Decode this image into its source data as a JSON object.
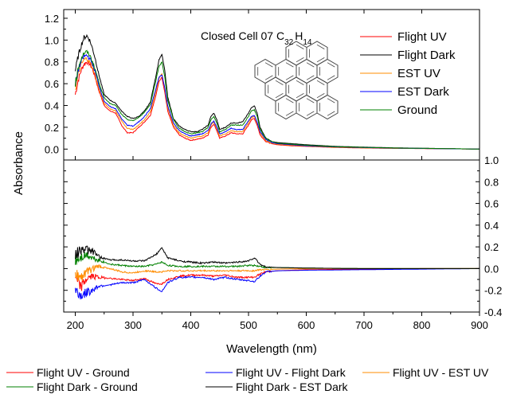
{
  "chart_data": [
    {
      "type": "line",
      "panel": "top",
      "annotation": {
        "text": "Closed Cell 07 C",
        "sub1": "32",
        "mid": "H",
        "sub2": "14"
      },
      "ylabel": "Absorbance",
      "xlim": [
        180,
        900
      ],
      "ylim": [
        -0.1,
        1.28
      ],
      "y_ticks": [
        0.0,
        0.2,
        0.4,
        0.6,
        0.8,
        1.0,
        1.2
      ],
      "y_tick_labels": [
        "0.0",
        "0.2",
        "0.4",
        "0.6",
        "0.8",
        "1.0",
        "1.2"
      ],
      "legend_position": "top-right",
      "series": [
        {
          "name": "Flight UV",
          "color": "#ff0000",
          "x": [
            200,
            205,
            210,
            215,
            220,
            225,
            230,
            235,
            240,
            250,
            260,
            270,
            280,
            290,
            300,
            310,
            320,
            330,
            340,
            345,
            350,
            355,
            360,
            370,
            380,
            390,
            400,
            410,
            420,
            430,
            435,
            440,
            445,
            450,
            460,
            470,
            480,
            490,
            500,
            505,
            510,
            515,
            520,
            530,
            540,
            550,
            575,
            600,
            650,
            700,
            750,
            800,
            850,
            900
          ],
          "y": [
            0.5,
            0.63,
            0.72,
            0.78,
            0.8,
            0.78,
            0.73,
            0.65,
            0.55,
            0.4,
            0.35,
            0.33,
            0.22,
            0.15,
            0.15,
            0.2,
            0.25,
            0.31,
            0.5,
            0.62,
            0.66,
            0.52,
            0.35,
            0.2,
            0.13,
            0.1,
            0.08,
            0.09,
            0.1,
            0.13,
            0.2,
            0.23,
            0.17,
            0.1,
            0.12,
            0.15,
            0.14,
            0.14,
            0.22,
            0.27,
            0.28,
            0.22,
            0.13,
            0.07,
            0.05,
            0.04,
            0.03,
            0.025,
            0.015,
            0.01,
            0.007,
            0.005,
            0.003,
            0.0
          ]
        },
        {
          "name": "Flight Dark",
          "color": "#000000",
          "x": [
            200,
            205,
            210,
            215,
            220,
            225,
            230,
            235,
            240,
            250,
            260,
            270,
            280,
            290,
            300,
            310,
            320,
            330,
            340,
            345,
            350,
            355,
            360,
            370,
            380,
            390,
            400,
            410,
            420,
            430,
            435,
            440,
            445,
            450,
            460,
            470,
            480,
            490,
            500,
            505,
            510,
            515,
            520,
            530,
            540,
            550,
            575,
            600,
            650,
            700,
            750,
            800,
            850,
            900
          ],
          "y": [
            0.72,
            0.85,
            0.95,
            1.02,
            1.04,
            1.0,
            0.92,
            0.82,
            0.7,
            0.5,
            0.45,
            0.42,
            0.35,
            0.3,
            0.28,
            0.3,
            0.35,
            0.43,
            0.68,
            0.82,
            0.87,
            0.72,
            0.48,
            0.28,
            0.21,
            0.18,
            0.16,
            0.16,
            0.18,
            0.22,
            0.3,
            0.33,
            0.27,
            0.18,
            0.2,
            0.24,
            0.24,
            0.25,
            0.33,
            0.38,
            0.4,
            0.33,
            0.2,
            0.1,
            0.07,
            0.06,
            0.05,
            0.04,
            0.025,
            0.018,
            0.012,
            0.008,
            0.004,
            0.0
          ]
        },
        {
          "name": "EST UV",
          "color": "#ff8c00",
          "x": [
            200,
            205,
            210,
            215,
            220,
            225,
            230,
            235,
            240,
            250,
            260,
            270,
            280,
            290,
            300,
            310,
            320,
            330,
            340,
            345,
            350,
            355,
            360,
            370,
            380,
            390,
            400,
            410,
            420,
            430,
            435,
            440,
            445,
            450,
            460,
            470,
            480,
            490,
            500,
            505,
            510,
            515,
            520,
            530,
            540,
            550,
            575,
            600,
            650,
            700,
            750,
            800,
            850,
            900
          ],
          "y": [
            0.55,
            0.68,
            0.77,
            0.82,
            0.83,
            0.8,
            0.75,
            0.67,
            0.57,
            0.42,
            0.37,
            0.35,
            0.26,
            0.19,
            0.18,
            0.22,
            0.27,
            0.34,
            0.54,
            0.65,
            0.69,
            0.55,
            0.38,
            0.22,
            0.15,
            0.12,
            0.1,
            0.11,
            0.12,
            0.15,
            0.22,
            0.25,
            0.19,
            0.12,
            0.14,
            0.17,
            0.16,
            0.16,
            0.24,
            0.29,
            0.3,
            0.24,
            0.15,
            0.08,
            0.055,
            0.045,
            0.035,
            0.028,
            0.017,
            0.012,
            0.008,
            0.006,
            0.003,
            0.0
          ]
        },
        {
          "name": "EST Dark",
          "color": "#0000ff",
          "x": [
            200,
            205,
            210,
            215,
            220,
            225,
            230,
            235,
            240,
            250,
            260,
            270,
            280,
            290,
            300,
            310,
            320,
            330,
            340,
            345,
            350,
            355,
            360,
            370,
            380,
            390,
            400,
            410,
            420,
            430,
            435,
            440,
            445,
            450,
            460,
            470,
            480,
            490,
            500,
            505,
            510,
            515,
            520,
            530,
            540,
            550,
            575,
            600,
            650,
            700,
            750,
            800,
            850,
            900
          ],
          "y": [
            0.58,
            0.72,
            0.8,
            0.85,
            0.86,
            0.83,
            0.78,
            0.7,
            0.6,
            0.44,
            0.39,
            0.37,
            0.28,
            0.22,
            0.21,
            0.25,
            0.3,
            0.37,
            0.56,
            0.66,
            0.68,
            0.56,
            0.4,
            0.24,
            0.17,
            0.14,
            0.12,
            0.13,
            0.14,
            0.17,
            0.23,
            0.26,
            0.2,
            0.14,
            0.16,
            0.19,
            0.18,
            0.18,
            0.26,
            0.3,
            0.31,
            0.25,
            0.16,
            0.09,
            0.06,
            0.05,
            0.04,
            0.03,
            0.02,
            0.014,
            0.009,
            0.006,
            0.003,
            0.0
          ]
        },
        {
          "name": "Ground",
          "color": "#008000",
          "x": [
            200,
            205,
            210,
            215,
            220,
            225,
            230,
            235,
            240,
            250,
            260,
            270,
            280,
            290,
            300,
            310,
            320,
            330,
            340,
            345,
            350,
            355,
            360,
            370,
            380,
            390,
            400,
            410,
            420,
            430,
            435,
            440,
            445,
            450,
            460,
            470,
            480,
            490,
            500,
            505,
            510,
            515,
            520,
            530,
            540,
            550,
            575,
            600,
            650,
            700,
            750,
            800,
            850,
            900
          ],
          "y": [
            0.6,
            0.74,
            0.83,
            0.88,
            0.89,
            0.86,
            0.8,
            0.72,
            0.63,
            0.47,
            0.42,
            0.4,
            0.32,
            0.27,
            0.26,
            0.29,
            0.34,
            0.41,
            0.64,
            0.76,
            0.8,
            0.66,
            0.45,
            0.27,
            0.19,
            0.16,
            0.14,
            0.15,
            0.16,
            0.2,
            0.27,
            0.3,
            0.24,
            0.16,
            0.18,
            0.22,
            0.22,
            0.22,
            0.3,
            0.35,
            0.36,
            0.3,
            0.18,
            0.1,
            0.07,
            0.055,
            0.045,
            0.035,
            0.022,
            0.016,
            0.01,
            0.007,
            0.004,
            0.0
          ]
        }
      ]
    },
    {
      "type": "line",
      "panel": "bottom",
      "xlabel": "Wavelength (nm)",
      "xlim": [
        180,
        900
      ],
      "ylim": [
        -0.4,
        1.0
      ],
      "x_ticks": [
        200,
        300,
        400,
        500,
        600,
        700,
        800,
        900
      ],
      "x_tick_labels": [
        "200",
        "300",
        "400",
        "500",
        "600",
        "700",
        "800",
        "900"
      ],
      "y_ticks": [
        -0.4,
        -0.2,
        0.0,
        0.2,
        0.4,
        0.6,
        0.8,
        1.0
      ],
      "y_tick_labels": [
        "-0.4",
        "-0.2",
        "0.0",
        "0.2",
        "0.4",
        "0.6",
        "0.8",
        "1.0"
      ],
      "legend_position": "bottom",
      "series": [
        {
          "name": "Flight UV - Ground",
          "color": "#ff0000",
          "x": [
            200,
            210,
            220,
            230,
            240,
            260,
            280,
            300,
            320,
            340,
            350,
            360,
            380,
            400,
            420,
            440,
            460,
            480,
            500,
            510,
            520,
            530,
            550,
            600,
            700,
            800,
            900
          ],
          "y": [
            -0.1,
            -0.17,
            -0.09,
            -0.07,
            -0.08,
            -0.09,
            -0.1,
            -0.11,
            -0.09,
            -0.14,
            -0.14,
            -0.1,
            -0.07,
            -0.06,
            -0.06,
            -0.07,
            -0.06,
            -0.08,
            -0.08,
            -0.08,
            -0.05,
            -0.03,
            -0.02,
            -0.01,
            -0.005,
            0.0,
            0.0
          ]
        },
        {
          "name": "Flight UV - Flight Dark",
          "color": "#0000ff",
          "x": [
            200,
            210,
            220,
            230,
            240,
            260,
            280,
            300,
            320,
            340,
            350,
            360,
            380,
            400,
            420,
            440,
            460,
            480,
            500,
            510,
            520,
            530,
            550,
            600,
            700,
            800,
            900
          ],
          "y": [
            -0.2,
            -0.25,
            -0.22,
            -0.2,
            -0.16,
            -0.15,
            -0.13,
            -0.13,
            -0.1,
            -0.18,
            -0.21,
            -0.13,
            -0.08,
            -0.08,
            -0.08,
            -0.1,
            -0.08,
            -0.1,
            -0.11,
            -0.12,
            -0.07,
            -0.03,
            -0.02,
            -0.015,
            -0.01,
            -0.005,
            0.0
          ]
        },
        {
          "name": "Flight UV - EST UV",
          "color": "#ff8c00",
          "x": [
            200,
            210,
            220,
            230,
            240,
            260,
            280,
            300,
            320,
            340,
            350,
            360,
            380,
            400,
            420,
            440,
            460,
            480,
            500,
            510,
            520,
            530,
            550,
            600,
            700,
            800,
            900
          ],
          "y": [
            -0.05,
            -0.08,
            -0.03,
            0.0,
            0.02,
            0.0,
            -0.03,
            -0.04,
            -0.02,
            -0.03,
            -0.03,
            -0.02,
            -0.02,
            -0.02,
            -0.02,
            -0.02,
            -0.02,
            -0.02,
            -0.02,
            -0.02,
            -0.01,
            -0.01,
            -0.005,
            0.0,
            0.0,
            0.0,
            0.0
          ]
        },
        {
          "name": "Flight Dark - Ground",
          "color": "#008000",
          "x": [
            200,
            210,
            220,
            230,
            240,
            260,
            280,
            300,
            320,
            340,
            350,
            360,
            380,
            400,
            420,
            440,
            460,
            480,
            500,
            510,
            520,
            530,
            550,
            600,
            700,
            800,
            900
          ],
          "y": [
            0.08,
            0.11,
            0.13,
            0.1,
            0.08,
            0.04,
            0.03,
            0.02,
            0.02,
            0.04,
            0.06,
            0.03,
            0.02,
            0.02,
            0.02,
            0.02,
            0.02,
            0.02,
            0.03,
            0.03,
            0.02,
            0.01,
            0.01,
            0.005,
            0.0,
            0.0,
            0.0
          ]
        },
        {
          "name": "Flight Dark - EST Dark",
          "color": "#000000",
          "x": [
            200,
            210,
            220,
            230,
            240,
            260,
            280,
            300,
            320,
            340,
            350,
            360,
            380,
            400,
            420,
            440,
            460,
            480,
            500,
            510,
            520,
            530,
            550,
            600,
            700,
            800,
            900
          ],
          "y": [
            0.12,
            0.18,
            0.17,
            0.16,
            0.11,
            0.08,
            0.08,
            0.07,
            0.07,
            0.13,
            0.19,
            0.1,
            0.07,
            0.06,
            0.05,
            0.06,
            0.05,
            0.06,
            0.07,
            0.1,
            0.04,
            0.015,
            0.01,
            0.005,
            0.0,
            0.0,
            0.0
          ]
        }
      ]
    }
  ]
}
